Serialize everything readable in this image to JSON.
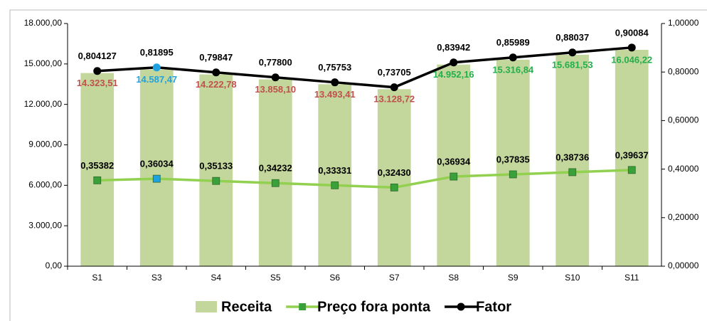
{
  "chart_data": {
    "type": "bar",
    "categories": [
      "S1",
      "S3",
      "S4",
      "S5",
      "S6",
      "S7",
      "S8",
      "S9",
      "S10",
      "S11"
    ],
    "ylim": [
      0,
      18000
    ],
    "yticks": [
      {
        "value": 0,
        "label": "0,00"
      },
      {
        "value": 3000,
        "label": "3.000,00"
      },
      {
        "value": 6000,
        "label": "6.000,00"
      },
      {
        "value": 9000,
        "label": "9.000,00"
      },
      {
        "value": 12000,
        "label": "12.000,00"
      },
      {
        "value": 15000,
        "label": "15.000,00"
      },
      {
        "value": 18000,
        "label": "18.000,00"
      }
    ],
    "y2lim": [
      0,
      1
    ],
    "y2ticks": [
      {
        "value": 0,
        "label": "0,00000"
      },
      {
        "value": 0.2,
        "label": "0,20000"
      },
      {
        "value": 0.4,
        "label": "0,40000"
      },
      {
        "value": 0.6,
        "label": "0,60000"
      },
      {
        "value": 0.8,
        "label": "0,80000"
      },
      {
        "value": 1,
        "label": "1,00000"
      }
    ],
    "legend": "bottom",
    "series": [
      {
        "name": "Receita",
        "type": "bar",
        "color": "#c3d69b",
        "values": [
          14323.51,
          14587.47,
          14222.78,
          13858.1,
          13493.41,
          13128.72,
          14952.16,
          15316.84,
          15681.53,
          16046.22
        ],
        "value_labels": [
          "14.323,51",
          "14.587,47",
          "14.222,78",
          "13.858,10",
          "13.493,41",
          "13.128,72",
          "14.952,16",
          "15.316,84",
          "15.681,53",
          "16.046,22"
        ],
        "value_label_colors": [
          "#c0504d",
          "#1fa3e0",
          "#c0504d",
          "#c0504d",
          "#c0504d",
          "#c0504d",
          "#21b04b",
          "#21b04b",
          "#21b04b",
          "#21b04b"
        ]
      },
      {
        "name": "Preço fora ponta",
        "type": "line",
        "axis": "y2",
        "color": "#92d050",
        "marker": "square",
        "point_colors": [
          "#3aa13a",
          "#1fa3e0",
          "#3aa13a",
          "#3aa13a",
          "#3aa13a",
          "#3aa13a",
          "#3aa13a",
          "#3aa13a",
          "#3aa13a",
          "#3aa13a"
        ],
        "values": [
          0.35382,
          0.36034,
          0.35133,
          0.34232,
          0.33331,
          0.3243,
          0.36934,
          0.37835,
          0.38736,
          0.39637
        ],
        "value_labels": [
          "0,35382",
          "0,36034",
          "0,35133",
          "0,34232",
          "0,33331",
          "0,32430",
          "0,36934",
          "0,37835",
          "0,38736",
          "0,39637"
        ]
      },
      {
        "name": "Fator",
        "type": "line",
        "axis": "y2",
        "color": "#000000",
        "marker": "circle",
        "point_colors": [
          "#000000",
          "#1fa3e0",
          "#000000",
          "#000000",
          "#000000",
          "#000000",
          "#000000",
          "#000000",
          "#000000",
          "#000000"
        ],
        "values": [
          0.804127,
          0.81895,
          0.79847,
          0.778,
          0.75753,
          0.73705,
          0.83942,
          0.85989,
          0.88037,
          0.90084
        ],
        "value_labels": [
          "0,804127",
          "0,81895",
          "0,79847",
          "0,77800",
          "0,75753",
          "0,73705",
          "0,83942",
          "0,85989",
          "0,88037",
          "0,90084"
        ]
      }
    ]
  }
}
